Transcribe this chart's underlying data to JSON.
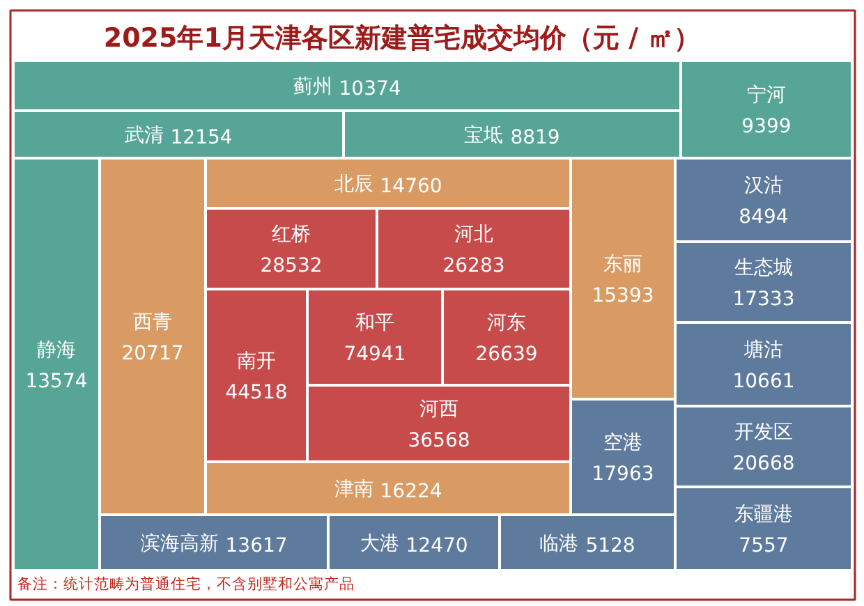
{
  "chart_data": {
    "type": "other",
    "title": "2025年1月天津各区新建普宅成交均价（元 / ㎡）",
    "categories": [
      "蓟州",
      "武清",
      "宝坻",
      "宁河",
      "静海",
      "西青",
      "北辰",
      "红桥",
      "河北",
      "南开",
      "和平",
      "河东",
      "河西",
      "津南",
      "东丽",
      "空港",
      "汉沽",
      "生态城",
      "塘沽",
      "开发区",
      "东疆港",
      "滨海高新",
      "大港",
      "临港"
    ],
    "values": [
      10374,
      12154,
      8819,
      9399,
      13574,
      20717,
      14760,
      28532,
      26283,
      44518,
      74941,
      26639,
      36568,
      16224,
      15393,
      17963,
      8494,
      17333,
      10661,
      20668,
      7557,
      13617,
      12470,
      5128
    ],
    "colors": [
      "#56a596",
      "#56a596",
      "#56a596",
      "#56a596",
      "#56a596",
      "#d99b63",
      "#d99b63",
      "#c84b4b",
      "#c84b4b",
      "#c84b4b",
      "#c84b4b",
      "#c84b4b",
      "#c84b4b",
      "#d99b63",
      "#d99b63",
      "#5e7a9d",
      "#5e7a9d",
      "#5e7a9d",
      "#5e7a9d",
      "#5e7a9d",
      "#5e7a9d",
      "#5e7a9d",
      "#5e7a9d",
      "#5e7a9d"
    ],
    "data_labels": true,
    "annotations": [
      "备注：统计范畴为普通住宅，不含别墅和公寓产品"
    ]
  }
}
